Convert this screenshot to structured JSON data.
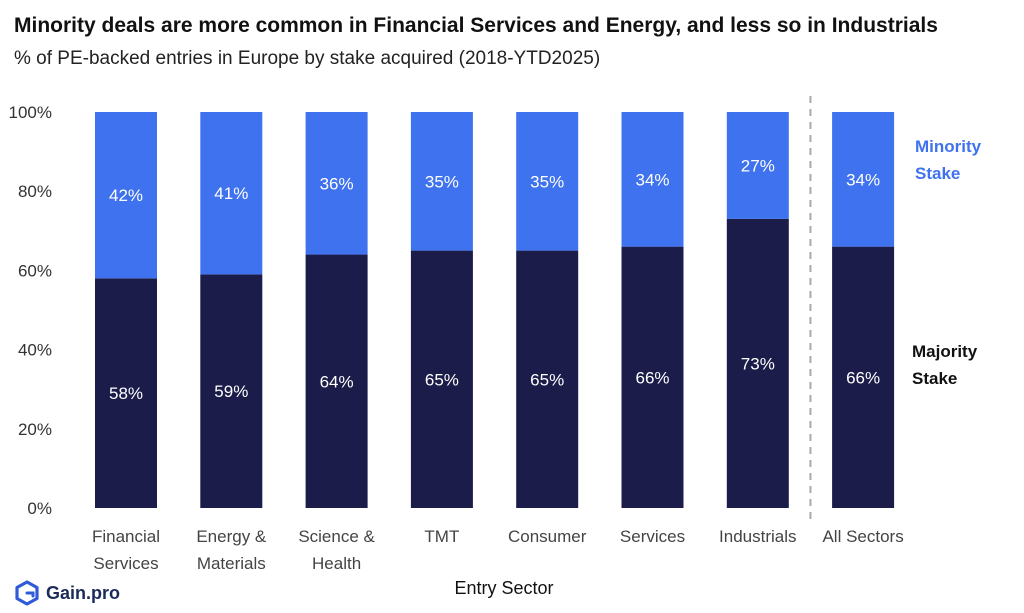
{
  "title": "Minority deals are more common in Financial Services and Energy, and less so in Industrials",
  "subtitle": "% of PE-backed entries in Europe by stake acquired (2018-YTD2025)",
  "brand": {
    "name": "Gain.pro",
    "color": "#2f5bd8"
  },
  "colors": {
    "majority": "#1b1c4a",
    "minority": "#3f72ee",
    "minority_label": "#3f72ee",
    "majority_label": "#111111"
  },
  "chart_data": {
    "type": "bar",
    "stacked": true,
    "percent_stacked": true,
    "categories": [
      "Financial Services",
      "Energy & Materials",
      "Science & Health",
      "TMT",
      "Consumer",
      "Services",
      "Industrials",
      "All Sectors"
    ],
    "category_lines": [
      [
        "Financial",
        "Services"
      ],
      [
        "Energy &",
        "Materials"
      ],
      [
        "Science &",
        "Health"
      ],
      [
        "TMT"
      ],
      [
        "Consumer"
      ],
      [
        "Services"
      ],
      [
        "Industrials"
      ],
      [
        "All Sectors"
      ]
    ],
    "series": [
      {
        "name": "Majority Stake",
        "values": [
          58,
          59,
          64,
          65,
          65,
          66,
          73,
          66
        ],
        "labels": [
          "58%",
          "59%",
          "64%",
          "65%",
          "65%",
          "66%",
          "73%",
          "66%"
        ]
      },
      {
        "name": "Minority Stake",
        "values": [
          42,
          41,
          36,
          35,
          35,
          34,
          27,
          34
        ],
        "labels": [
          "42%",
          "41%",
          "36%",
          "35%",
          "35%",
          "34%",
          "27%",
          "34%"
        ]
      }
    ],
    "series_label_lines": [
      [
        "Majority",
        "Stake"
      ],
      [
        "Minority",
        "Stake"
      ]
    ],
    "xlabel": "Entry Sector",
    "ylabel": "",
    "ylim": [
      0,
      100
    ],
    "yticks": [
      "0%",
      "20%",
      "40%",
      "60%",
      "80%",
      "100%"
    ],
    "grid": false,
    "separator_before_last": true
  }
}
